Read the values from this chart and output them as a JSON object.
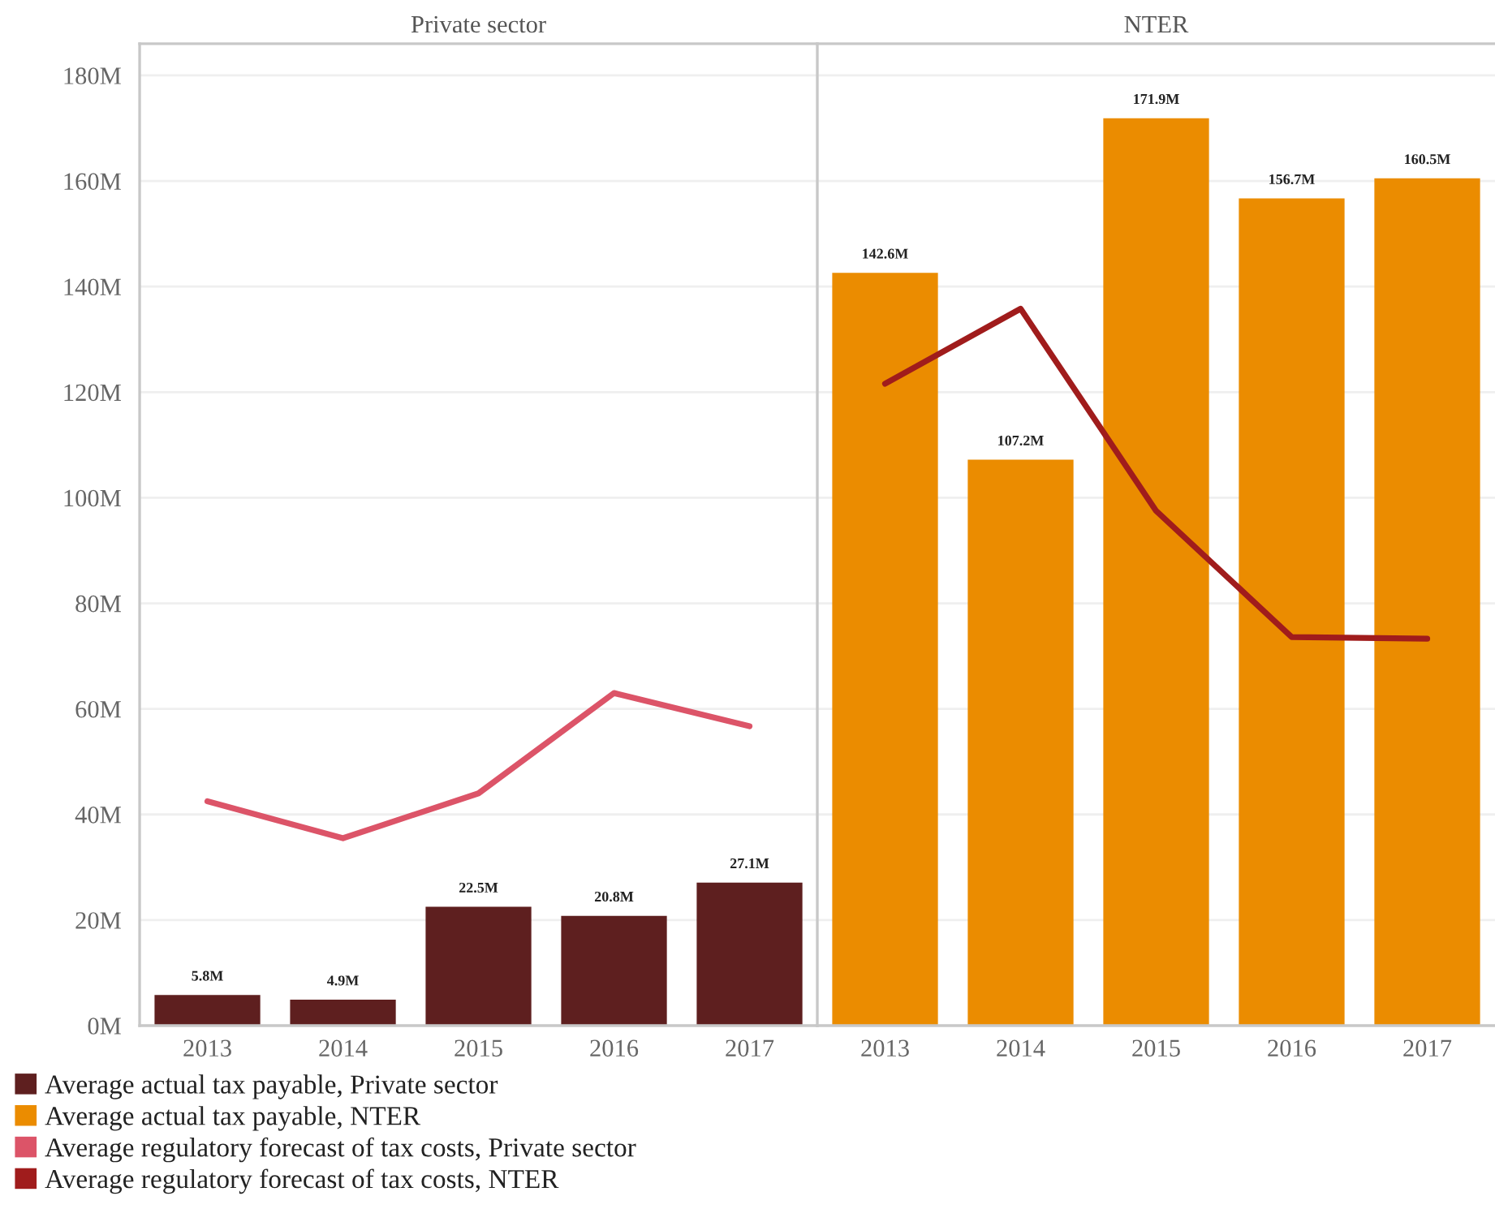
{
  "chart_data": [
    {
      "type": "bar",
      "title": "Private sector",
      "categories": [
        "2013",
        "2014",
        "2015",
        "2016",
        "2017"
      ],
      "series": [
        {
          "name": "Average actual tax payable, Private sector",
          "color": "#5e1f1f",
          "values": [
            5.8,
            4.9,
            22.5,
            20.8,
            27.1
          ],
          "value_labels": [
            "5.8M",
            "4.9M",
            "22.5M",
            "20.8M",
            "27.1M"
          ]
        },
        {
          "name": "Average regulatory forecast of tax costs, Private sector",
          "type": "line",
          "color": "#dc5468",
          "values": [
            42.5,
            35.5,
            44.0,
            63.0,
            56.7
          ]
        }
      ],
      "ylim": [
        0,
        186
      ],
      "yticks": [
        {
          "value": 0,
          "label": "0M"
        },
        {
          "value": 20,
          "label": "20M"
        },
        {
          "value": 40,
          "label": "40M"
        },
        {
          "value": 60,
          "label": "60M"
        },
        {
          "value": 80,
          "label": "80M"
        },
        {
          "value": 100,
          "label": "100M"
        },
        {
          "value": 120,
          "label": "120M"
        },
        {
          "value": 140,
          "label": "140M"
        },
        {
          "value": 160,
          "label": "160M"
        },
        {
          "value": 180,
          "label": "180M"
        }
      ],
      "grid": "y",
      "legend": "bottom left",
      "line_style": "solid"
    },
    {
      "type": "bar",
      "title": "NTER",
      "categories": [
        "2013",
        "2014",
        "2015",
        "2016",
        "2017"
      ],
      "series": [
        {
          "name": "Average actual tax payable, NTER",
          "color": "#eb8c00",
          "values": [
            142.6,
            107.2,
            171.9,
            156.7,
            160.5
          ],
          "value_labels": [
            "142.6M",
            "107.2M",
            "171.9M",
            "156.7M",
            "160.5M"
          ]
        },
        {
          "name": "Average regulatory forecast of tax costs, NTER",
          "type": "line",
          "color": "#a01c1c",
          "values": [
            121.6,
            135.8,
            97.5,
            73.6,
            73.3
          ]
        }
      ],
      "ylim": [
        0,
        186
      ],
      "yticks": [
        {
          "value": 0,
          "label": null
        },
        {
          "value": 20,
          "label": null
        },
        {
          "value": 40,
          "label": null
        },
        {
          "value": 60,
          "label": null
        },
        {
          "value": 80,
          "label": null
        },
        {
          "value": 100,
          "label": null
        },
        {
          "value": 120,
          "label": null
        },
        {
          "value": 140,
          "label": null
        },
        {
          "value": 160,
          "label": null
        },
        {
          "value": 180,
          "label": null
        }
      ],
      "grid": "y",
      "legend": "bottom left",
      "line_style": "solid",
      "tick_labels": "x"
    }
  ]
}
